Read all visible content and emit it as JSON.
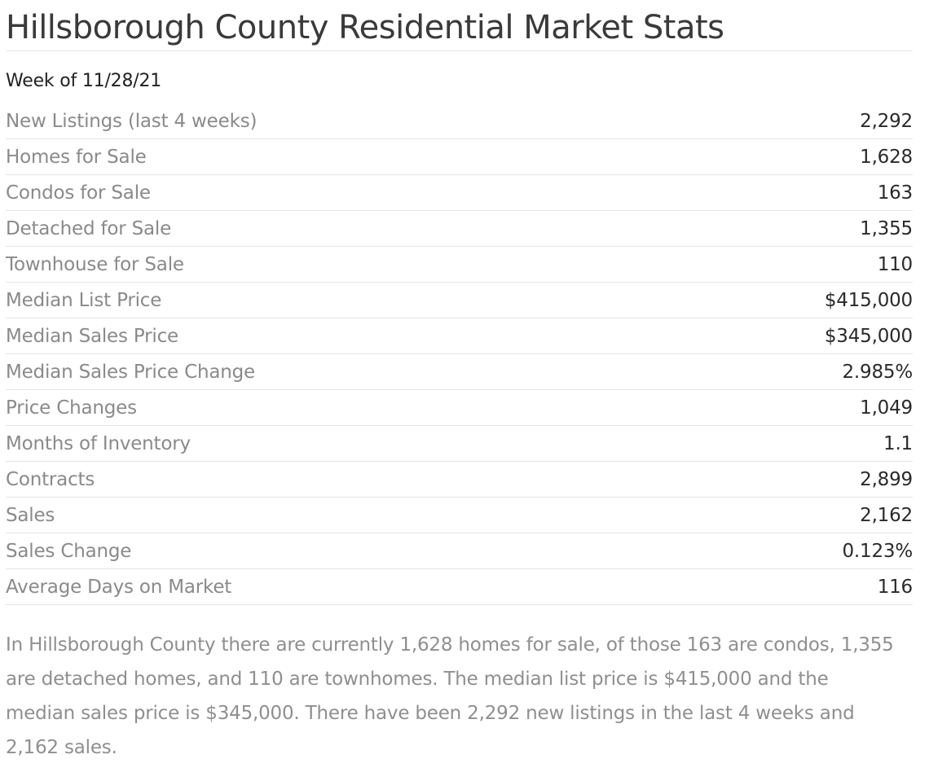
{
  "header": {
    "title": "Hillsborough County Residential Market Stats",
    "week": "Week of 11/28/21"
  },
  "stats": [
    {
      "label": "New Listings (last 4 weeks)",
      "value": "2,292"
    },
    {
      "label": "Homes for Sale",
      "value": "1,628"
    },
    {
      "label": "Condos for Sale",
      "value": "163"
    },
    {
      "label": "Detached for Sale",
      "value": "1,355"
    },
    {
      "label": "Townhouse for Sale",
      "value": "110"
    },
    {
      "label": "Median List Price",
      "value": "$415,000"
    },
    {
      "label": "Median Sales Price",
      "value": "$345,000"
    },
    {
      "label": "Median Sales Price Change",
      "value": "2.985%"
    },
    {
      "label": "Price Changes",
      "value": "1,049"
    },
    {
      "label": "Months of Inventory",
      "value": "1.1"
    },
    {
      "label": "Contracts",
      "value": "2,899"
    },
    {
      "label": "Sales",
      "value": "2,162"
    },
    {
      "label": "Sales Change",
      "value": "0.123%"
    },
    {
      "label": "Average Days on Market",
      "value": "116"
    }
  ],
  "summary": "In Hillsborough County there are currently 1,628 homes for sale, of those 163 are condos, 1,355 are detached homes, and 110 are townhomes. The median list price is $415,000 and the median sales price is $345,000. There have been 2,292 new listings in the last 4 weeks and 2,162 sales."
}
